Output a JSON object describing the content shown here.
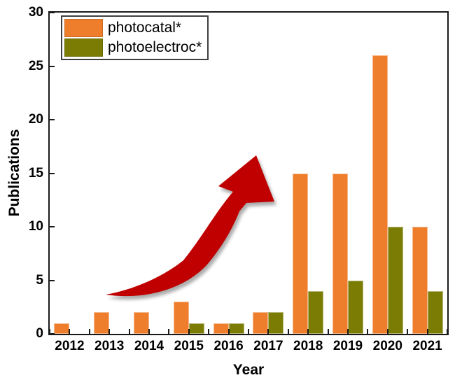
{
  "chart_data": {
    "type": "bar",
    "title": "",
    "xlabel": "Year",
    "ylabel": "Publications",
    "categories": [
      "2012",
      "2013",
      "2014",
      "2015",
      "2016",
      "2017",
      "2018",
      "2019",
      "2020",
      "2021"
    ],
    "series": [
      {
        "name": "photocatal*",
        "color": "#EE7E2C",
        "values": [
          1,
          2,
          2,
          3,
          1,
          2,
          15,
          15,
          26,
          10
        ]
      },
      {
        "name": "photoelectroc*",
        "color": "#7B7C04",
        "values": [
          0,
          0,
          0,
          1,
          1,
          2,
          4,
          5,
          10,
          4
        ]
      }
    ],
    "ylim": [
      0,
      30
    ],
    "yticks": [
      0,
      5,
      10,
      15,
      20,
      25,
      30
    ],
    "grid": false,
    "legend_position": "top-left",
    "annotation": {
      "type": "curved-up-arrow",
      "color": "#C00000",
      "meaning": "rising trend"
    }
  },
  "colors": {
    "background": "#FFFFFF",
    "axis": "#1A1A1A",
    "text": "#000000",
    "legend_border": "#404040"
  }
}
